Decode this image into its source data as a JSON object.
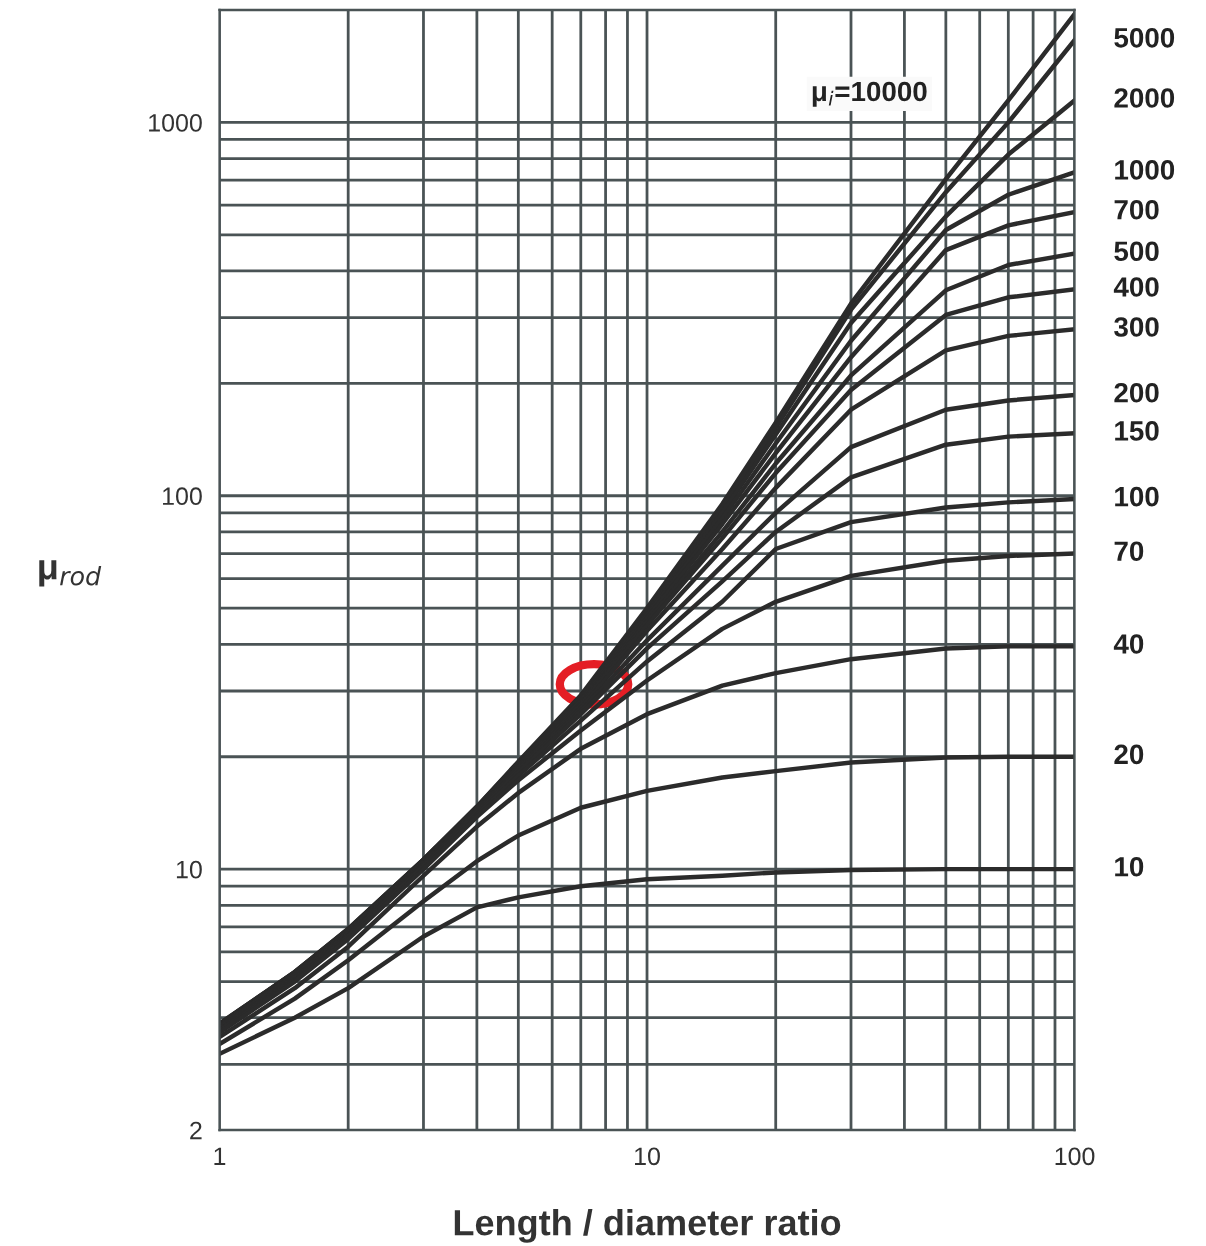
{
  "chart_data": {
    "type": "line",
    "xlabel": "Length / diameter ratio",
    "ylabel": "μ$_{rod}$",
    "x": [
      1,
      1.5,
      2,
      3,
      4,
      5,
      7,
      10,
      15,
      20,
      30,
      50,
      70,
      100
    ],
    "log": "xy",
    "grid": true,
    "legend": false,
    "marker": "none",
    "line_style": "solid",
    "xlim": [
      1,
      100
    ],
    "ylim": [
      2,
      2000
    ],
    "xticks": [
      1,
      {
        "value": 2,
        "label": null
      },
      {
        "value": 3,
        "label": null
      },
      {
        "value": 4,
        "label": null
      },
      {
        "value": 5,
        "label": null
      },
      {
        "value": 6,
        "label": null
      },
      {
        "value": 7,
        "label": null
      },
      {
        "value": 8,
        "label": null
      },
      {
        "value": 9,
        "label": null
      },
      10,
      {
        "value": 20,
        "label": null
      },
      {
        "value": 30,
        "label": null
      },
      {
        "value": 40,
        "label": null
      },
      {
        "value": 50,
        "label": null
      },
      {
        "value": 60,
        "label": null
      },
      {
        "value": 70,
        "label": null
      },
      {
        "value": 80,
        "label": null
      },
      {
        "value": 90,
        "label": null
      },
      100
    ],
    "yticks": [
      2,
      {
        "value": 3,
        "label": null
      },
      {
        "value": 4,
        "label": null
      },
      {
        "value": 5,
        "label": null
      },
      {
        "value": 6,
        "label": null
      },
      {
        "value": 7,
        "label": null
      },
      {
        "value": 8,
        "label": null
      },
      {
        "value": 9,
        "label": null
      },
      10,
      {
        "value": 20,
        "label": null
      },
      {
        "value": 30,
        "label": null
      },
      {
        "value": 40,
        "label": null
      },
      {
        "value": 50,
        "label": null
      },
      {
        "value": 60,
        "label": null
      },
      {
        "value": 70,
        "label": null
      },
      {
        "value": 80,
        "label": null
      },
      {
        "value": 90,
        "label": null
      },
      100,
      {
        "value": 200,
        "label": null
      },
      {
        "value": 300,
        "label": null
      },
      {
        "value": 400,
        "label": null
      },
      {
        "value": 500,
        "label": null
      },
      {
        "value": 600,
        "label": null
      },
      {
        "value": 700,
        "label": null
      },
      {
        "value": 800,
        "label": null
      },
      {
        "value": 900,
        "label": null
      },
      1000,
      {
        "value": 2000,
        "label": null
      }
    ],
    "annotations": [
      "μ$_{i}$=10000"
    ],
    "series": [
      {
        "color": "#2b2b2b",
        "values": [
          3.86,
          5.3,
          6.92,
          10.6,
          14.7,
          19.4,
          29.2,
          50,
          95,
          157,
          327,
          705,
          1145,
          1950
        ]
      },
      {
        "name": "5000",
        "color": "#2b2b2b",
        "values": [
          3.85,
          5.3,
          6.9,
          10.6,
          14.7,
          19.3,
          29,
          49,
          93,
          152,
          315,
          650,
          1000,
          1660
        ]
      },
      {
        "name": "2000",
        "color": "#2b2b2b",
        "values": [
          3.84,
          5.3,
          6.9,
          10.6,
          14.6,
          19.2,
          28.8,
          48.5,
          90,
          146,
          290,
          560,
          820,
          1145
        ]
      },
      {
        "name": "1000",
        "color": "#2b2b2b",
        "values": [
          3.83,
          5.28,
          6.87,
          10.55,
          14.6,
          19.1,
          28.5,
          48,
          87,
          138,
          260,
          515,
          640,
          735
        ]
      },
      {
        "name": "700",
        "color": "#2b2b2b",
        "values": [
          3.82,
          5.25,
          6.85,
          10.5,
          14.6,
          19,
          28.2,
          47,
          84,
          130,
          235,
          455,
          530,
          575
        ]
      },
      {
        "name": "500",
        "color": "#2b2b2b",
        "values": [
          3.8,
          5.25,
          6.82,
          10.5,
          14.5,
          18.9,
          27.8,
          46,
          80,
          122,
          210,
          355,
          415,
          445
        ]
      },
      {
        "name": "400",
        "color": "#2b2b2b",
        "values": [
          3.8,
          5.2,
          6.8,
          10.45,
          14.5,
          18.8,
          27.5,
          45,
          77,
          115,
          192,
          305,
          340,
          357
        ]
      },
      {
        "name": "300",
        "color": "#2b2b2b",
        "values": [
          3.78,
          5.2,
          6.75,
          10.4,
          14.4,
          18.7,
          27,
          43.5,
          72,
          105,
          170,
          245,
          268,
          279
        ]
      },
      {
        "name": "200",
        "color": "#2b2b2b",
        "values": [
          3.75,
          5.15,
          6.7,
          10.35,
          14.3,
          18.5,
          26.5,
          41,
          65,
          90,
          135,
          170,
          180,
          186
        ]
      },
      {
        "name": "150",
        "color": "#2b2b2b",
        "values": [
          3.72,
          5.1,
          6.65,
          10.3,
          14.2,
          18.2,
          26,
          39,
          59,
          80,
          112,
          137,
          144,
          147
        ]
      },
      {
        "name": "100",
        "color": "#2b2b2b",
        "values": [
          3.7,
          5.05,
          6.6,
          10.2,
          14,
          17.8,
          25,
          36,
          52,
          72,
          85,
          93,
          96,
          98
        ]
      },
      {
        "name": "70",
        "color": "#2b2b2b",
        "values": [
          3.65,
          5,
          6.5,
          10,
          13.8,
          17.3,
          23.5,
          32,
          44,
          52,
          61,
          67,
          69,
          70
        ]
      },
      {
        "name": "40",
        "color": "#2b2b2b",
        "values": [
          3.55,
          4.8,
          6.2,
          9.6,
          13,
          16,
          21,
          26,
          31,
          33.5,
          36.5,
          39,
          39.5,
          39.5
        ]
      },
      {
        "name": "20",
        "color": "#2b2b2b",
        "values": [
          3.4,
          4.5,
          5.7,
          8.2,
          10.5,
          12.3,
          14.6,
          16.2,
          17.6,
          18.3,
          19.3,
          19.9,
          20,
          20
        ]
      },
      {
        "name": "10",
        "color": "#2b2b2b",
        "values": [
          3.2,
          4,
          4.8,
          6.6,
          7.9,
          8.4,
          9,
          9.4,
          9.6,
          9.8,
          9.95,
          10,
          10,
          10
        ]
      }
    ]
  }
}
